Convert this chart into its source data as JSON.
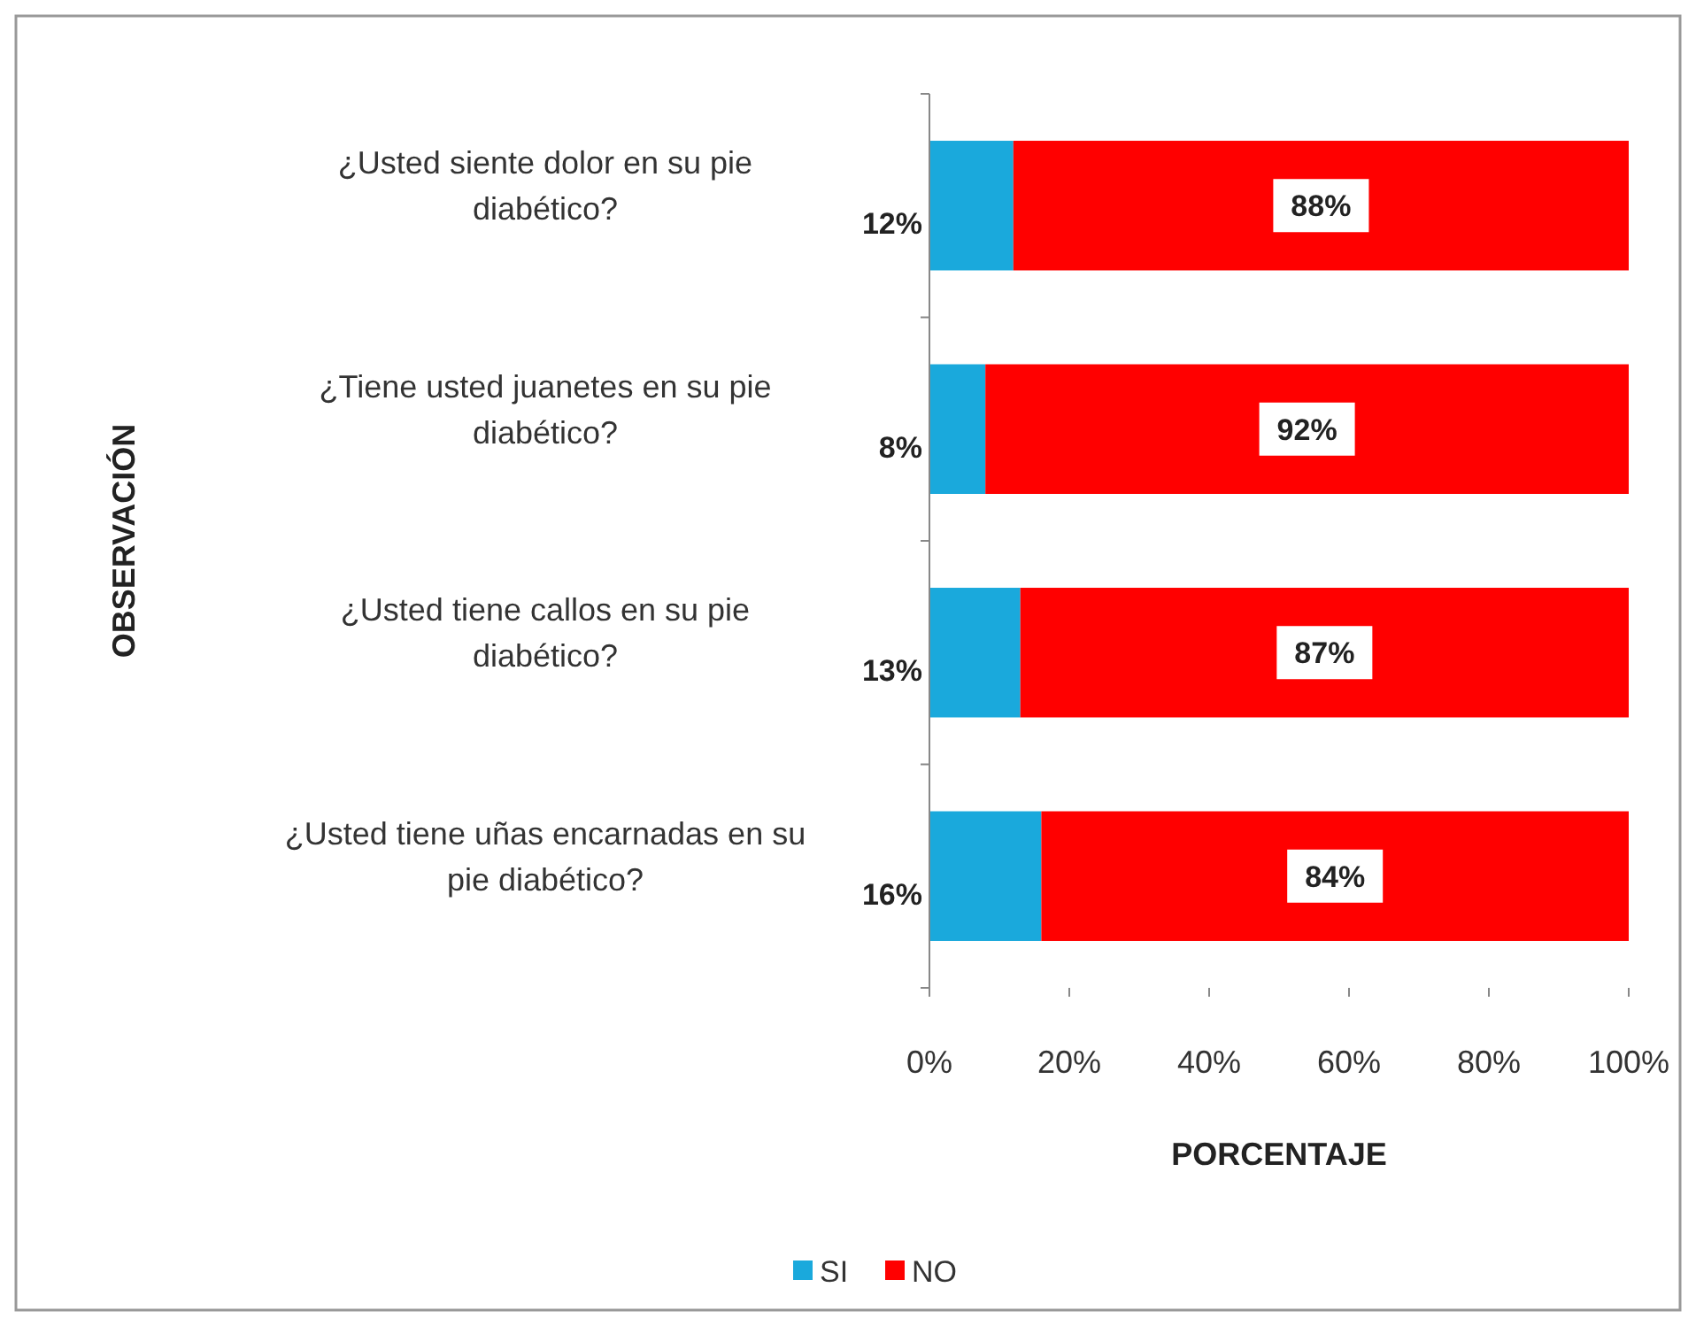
{
  "chart_data": {
    "type": "bar",
    "orientation": "horizontal",
    "stacked": true,
    "xlabel": "PORCENTAJE",
    "ylabel": "OBSERVACIÓN",
    "categories": [
      "¿Usted siente dolor en su pie diabético?",
      "¿Tiene usted juanetes en su pie diabético?",
      "¿Usted tiene callos en su pie diabético?",
      "¿Usted tiene uñas encarnadas en su pie diabético?"
    ],
    "series": [
      {
        "name": "SI",
        "color": "#1aa9dc",
        "values": [
          12,
          8,
          13,
          16
        ],
        "value_labels": [
          "12%",
          "8%",
          "13%",
          "16%"
        ]
      },
      {
        "name": "NO",
        "color": "#ff0000",
        "values": [
          88,
          92,
          87,
          84
        ],
        "value_labels": [
          "88%",
          "92%",
          "87%",
          "84%"
        ]
      }
    ],
    "xlim": [
      0,
      100
    ],
    "xticks": [
      {
        "value": 0,
        "label": "0%"
      },
      {
        "value": 20,
        "label": "20%"
      },
      {
        "value": 40,
        "label": "40%"
      },
      {
        "value": 60,
        "label": "60%"
      },
      {
        "value": 80,
        "label": "80%"
      },
      {
        "value": 100,
        "label": "100%"
      }
    ],
    "grid": false,
    "legend": "bottom"
  }
}
